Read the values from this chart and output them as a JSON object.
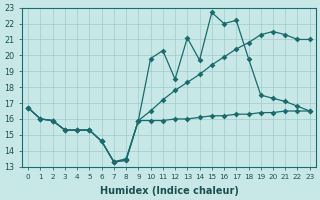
{
  "bg_color": "#c8e8e8",
  "grid_color": "#a0cccc",
  "line_color": "#1a6b6b",
  "xlabel": "Humidex (Indice chaleur)",
  "xlim": [
    -0.5,
    23.5
  ],
  "ylim": [
    13,
    23
  ],
  "xtick_vals": [
    0,
    1,
    2,
    3,
    4,
    5,
    6,
    7,
    8,
    9,
    10,
    11,
    12,
    13,
    14,
    15,
    16,
    17,
    18,
    19,
    20,
    21,
    22,
    23
  ],
  "ytick_vals": [
    13,
    14,
    15,
    16,
    17,
    18,
    19,
    20,
    21,
    22,
    23
  ],
  "line1_x": [
    0,
    1,
    2,
    3,
    4,
    5,
    6,
    7,
    8,
    9,
    10,
    11,
    12,
    13,
    14,
    15,
    16,
    17,
    18,
    19,
    20,
    21,
    22,
    23
  ],
  "line1_y": [
    16.7,
    16.0,
    15.9,
    15.3,
    15.3,
    15.3,
    14.6,
    13.3,
    13.4,
    15.9,
    15.9,
    15.9,
    16.0,
    16.0,
    16.1,
    16.2,
    16.2,
    16.3,
    16.3,
    16.4,
    16.4,
    16.5,
    16.5,
    16.5
  ],
  "line2_x": [
    0,
    1,
    2,
    3,
    4,
    5,
    6,
    7,
    8,
    9,
    10,
    11,
    12,
    13,
    14,
    15,
    16,
    17,
    18,
    19,
    20,
    21,
    22,
    23
  ],
  "line2_y": [
    16.7,
    16.0,
    15.9,
    15.3,
    15.3,
    15.3,
    14.6,
    13.3,
    13.4,
    15.9,
    16.5,
    17.2,
    17.8,
    18.3,
    18.8,
    19.4,
    19.9,
    20.4,
    20.8,
    21.3,
    21.5,
    21.3,
    21.0,
    21.0
  ],
  "line3_x": [
    0,
    1,
    2,
    3,
    4,
    5,
    6,
    7,
    8,
    9,
    10,
    11,
    12,
    13,
    14,
    15,
    16,
    17,
    18,
    19,
    20,
    21,
    22,
    23
  ],
  "line3_y": [
    16.7,
    16.0,
    15.9,
    15.3,
    15.3,
    15.3,
    14.6,
    13.3,
    13.5,
    15.9,
    19.8,
    20.3,
    18.5,
    21.1,
    19.7,
    22.7,
    22.0,
    22.2,
    19.8,
    17.5,
    17.3,
    17.1,
    16.8,
    16.5
  ],
  "marker_size": 3.0,
  "linewidth": 0.9
}
